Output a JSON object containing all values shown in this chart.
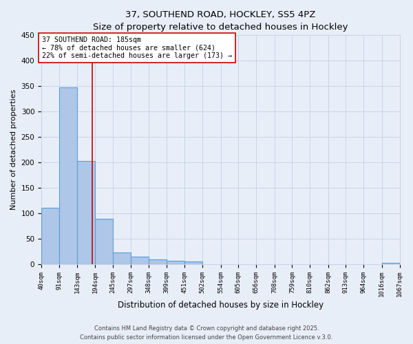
{
  "title_line1": "37, SOUTHEND ROAD, HOCKLEY, SS5 4PZ",
  "title_line2": "Size of property relative to detached houses in Hockley",
  "xlabel": "Distribution of detached houses by size in Hockley",
  "ylabel": "Number of detached properties",
  "bin_edges": [
    40,
    91,
    143,
    194,
    245,
    297,
    348,
    399,
    451,
    502,
    554,
    605,
    656,
    708,
    759,
    810,
    862,
    913,
    964,
    1016,
    1067
  ],
  "bar_heights": [
    111,
    348,
    203,
    89,
    23,
    15,
    9,
    7,
    6,
    0,
    0,
    0,
    0,
    0,
    0,
    0,
    0,
    0,
    0,
    3
  ],
  "bar_color": "#aec6e8",
  "bar_edge_color": "#5a9fd4",
  "vline_x": 185,
  "vline_color": "#cc0000",
  "annotation_text": "37 SOUTHEND ROAD: 185sqm\n← 78% of detached houses are smaller (624)\n22% of semi-detached houses are larger (173) →",
  "annotation_box_color": "#ffffff",
  "annotation_box_edge_color": "#cc0000",
  "ylim": [
    0,
    450
  ],
  "yticks": [
    0,
    50,
    100,
    150,
    200,
    250,
    300,
    350,
    400,
    450
  ],
  "grid_color": "#c8d4e8",
  "bg_color": "#e8eef8",
  "footer_line1": "Contains HM Land Registry data © Crown copyright and database right 2025.",
  "footer_line2": "Contains public sector information licensed under the Open Government Licence v.3.0."
}
